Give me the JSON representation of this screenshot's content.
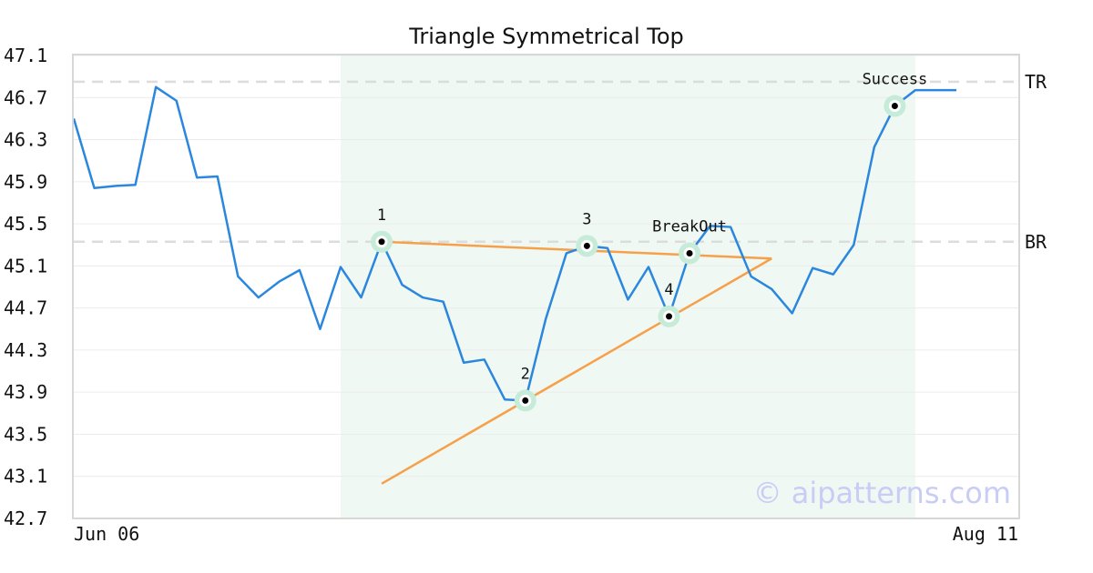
{
  "chart_data": {
    "type": "line",
    "title": "Triangle Symmetrical Top",
    "watermark": "© aipatterns.com",
    "ylim": [
      42.7,
      47.1
    ],
    "yticks": [
      "47.1",
      "46.7",
      "46.3",
      "45.9",
      "45.5",
      "45.1",
      "44.7",
      "44.3",
      "43.9",
      "43.5",
      "43.1",
      "42.7"
    ],
    "x_start_label": "Jun 06",
    "x_end_label": "Aug 11",
    "grid": true,
    "levels": [
      {
        "label": "TR",
        "value": 46.85
      },
      {
        "label": "BR",
        "value": 45.33
      }
    ],
    "pattern_window": {
      "start_index": 13,
      "end_index": 41
    },
    "series": [
      {
        "values": [
          46.5,
          45.84,
          45.86,
          45.87,
          46.8,
          46.67,
          45.94,
          45.95,
          45.0,
          44.8,
          44.95,
          45.06,
          44.5,
          45.09,
          44.8,
          45.33,
          44.92,
          44.8,
          44.76,
          44.18,
          44.21,
          43.83,
          43.82,
          44.6,
          45.22,
          45.29,
          45.27,
          44.78,
          45.09,
          44.62,
          45.22,
          45.48,
          45.47,
          45.0,
          44.88,
          44.65,
          45.08,
          45.02,
          45.3,
          46.23,
          46.62,
          46.77,
          46.77,
          46.77
        ],
        "color": "#2b87dd"
      }
    ],
    "trendlines": [
      {
        "from": [
          15,
          45.33
        ],
        "to": [
          34,
          45.17
        ],
        "color": "#f6a04a"
      },
      {
        "from": [
          15,
          43.03
        ],
        "to": [
          34,
          45.17
        ],
        "color": "#f6a04a"
      }
    ],
    "annotations": [
      {
        "label": "1",
        "index": 15,
        "value": 45.33
      },
      {
        "label": "2",
        "index": 22,
        "value": 43.82
      },
      {
        "label": "3",
        "index": 25,
        "value": 45.29
      },
      {
        "label": "4",
        "index": 29,
        "value": 44.62
      },
      {
        "label": "BreakOut",
        "index": 30,
        "value": 45.22
      },
      {
        "label": "Success",
        "index": 40,
        "value": 46.62
      }
    ]
  }
}
